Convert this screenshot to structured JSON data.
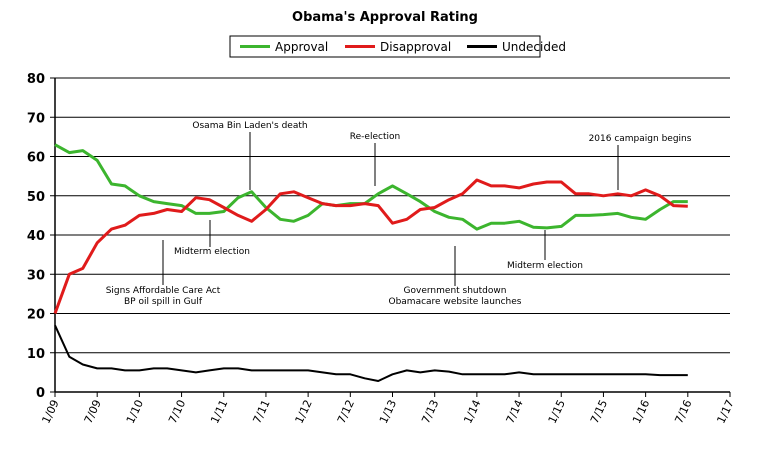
{
  "chart_data": {
    "type": "line",
    "title": "Obama's Approval Rating",
    "x": [
      2009,
      2009.17,
      2009.33,
      2009.5,
      2009.67,
      2009.83,
      2010,
      2010.17,
      2010.33,
      2010.5,
      2010.67,
      2010.83,
      2011,
      2011.17,
      2011.33,
      2011.5,
      2011.67,
      2011.83,
      2012,
      2012.17,
      2012.33,
      2012.5,
      2012.67,
      2012.83,
      2013,
      2013.17,
      2013.33,
      2013.5,
      2013.67,
      2013.83,
      2014,
      2014.17,
      2014.33,
      2014.5,
      2014.67,
      2014.83,
      2015,
      2015.17,
      2015.33,
      2015.5,
      2015.67,
      2015.83,
      2016,
      2016.17,
      2016.33,
      2016.5
    ],
    "series": [
      {
        "name": "Approval",
        "color": "#3cb52e",
        "values": [
          63,
          61,
          61.5,
          59,
          53,
          52.5,
          50,
          48.5,
          48,
          47.5,
          45.5,
          45.5,
          46,
          49.5,
          51,
          47,
          44,
          43.5,
          45,
          48,
          47.5,
          48,
          48,
          50.5,
          52.5,
          50.5,
          48.5,
          46,
          44.5,
          44,
          41.5,
          43,
          43,
          43.5,
          42,
          41.8,
          42.2,
          45,
          45,
          45.2,
          45.5,
          44.5,
          44,
          46.5,
          48.5,
          48.5
        ]
      },
      {
        "name": "Disapproval",
        "color": "#e01b1b",
        "values": [
          20,
          30,
          31.5,
          38,
          41.5,
          42.5,
          45,
          45.5,
          46.5,
          46,
          49.5,
          49,
          47,
          45,
          43.5,
          46.5,
          50.5,
          51,
          49.5,
          48,
          47.5,
          47.5,
          48,
          47.5,
          43,
          44,
          46.5,
          47,
          49,
          50.5,
          54,
          52.5,
          52.5,
          52,
          53,
          53.5,
          53.5,
          50.5,
          50.5,
          50,
          50.5,
          50,
          51.5,
          50,
          47.5,
          47.3
        ]
      },
      {
        "name": "Undecided",
        "color": "#000000",
        "values": [
          17,
          9,
          7,
          6,
          6,
          5.5,
          5.5,
          6,
          6,
          5.5,
          5,
          5.5,
          6,
          6,
          5.5,
          5.5,
          5.5,
          5.5,
          5.5,
          5,
          4.5,
          4.5,
          3.5,
          2.8,
          4.5,
          5.5,
          5,
          5.5,
          5.2,
          4.5,
          4.5,
          4.5,
          4.5,
          5,
          4.5,
          4.5,
          4.5,
          4.5,
          4.5,
          4.5,
          4.5,
          4.5,
          4.5,
          4.3,
          4.3,
          4.3
        ]
      }
    ],
    "xlim": [
      2009,
      2017
    ],
    "xticks": [
      {
        "value": 2009,
        "label": "1/09"
      },
      {
        "value": 2009.5,
        "label": "7/09"
      },
      {
        "value": 2010,
        "label": "1/10"
      },
      {
        "value": 2010.5,
        "label": "7/10"
      },
      {
        "value": 2011,
        "label": "1/11"
      },
      {
        "value": 2011.5,
        "label": "7/11"
      },
      {
        "value": 2012,
        "label": "1/12"
      },
      {
        "value": 2012.5,
        "label": "7/12"
      },
      {
        "value": 2013,
        "label": "1/13"
      },
      {
        "value": 2013.5,
        "label": "7/13"
      },
      {
        "value": 2014,
        "label": "1/14"
      },
      {
        "value": 2014.5,
        "label": "7/14"
      },
      {
        "value": 2015,
        "label": "1/15"
      },
      {
        "value": 2015.5,
        "label": "7/15"
      },
      {
        "value": 2016,
        "label": "1/16"
      },
      {
        "value": 2016.5,
        "label": "7/16"
      },
      {
        "value": 2017,
        "label": "1/17"
      }
    ],
    "ylim": [
      0,
      80
    ],
    "yticks": [
      0,
      10,
      20,
      30,
      40,
      50,
      60,
      70,
      80
    ],
    "grid": true,
    "legend": "top",
    "annotations": [
      "Osama Bin Laden's death",
      "Re-election",
      "2016 campaign begins",
      "Midterm election",
      "Signs Affordable Care Act",
      "BP oil spill in Gulf",
      "Government shutdown",
      "Obamacare website launches",
      "Midterm election"
    ]
  }
}
